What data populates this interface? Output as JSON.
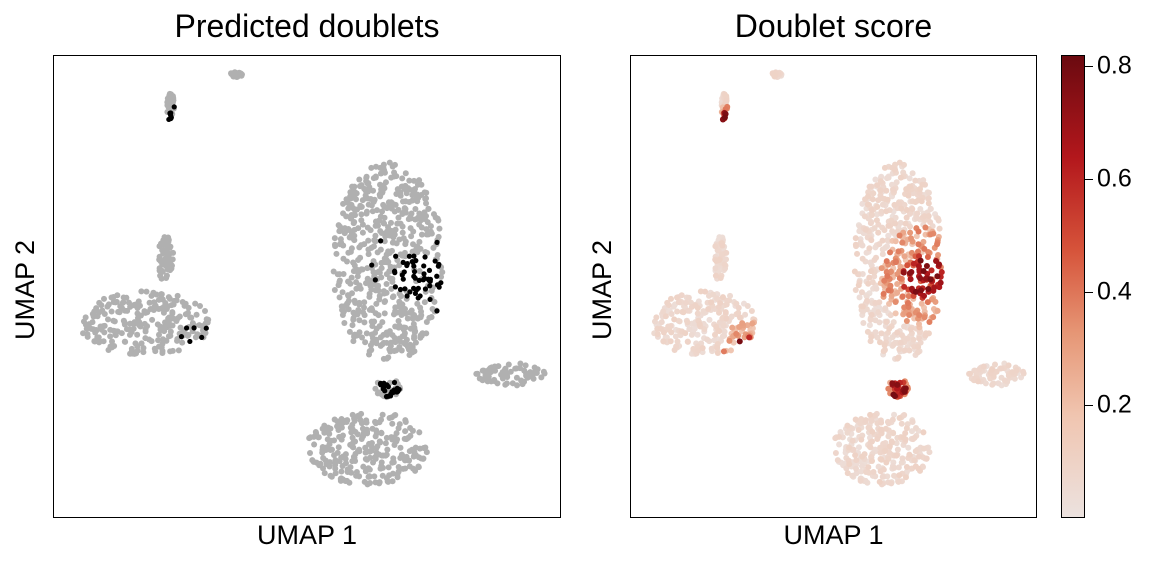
{
  "chart_data": [
    {
      "type": "scatter",
      "title": "Predicted doublets",
      "xlabel": "UMAP 1",
      "ylabel": "UMAP 2",
      "ticks": "none",
      "legend": "none",
      "point_colors": {
        "singlet": "#b0b0b0",
        "doublet": "#000000"
      },
      "clusters": [
        {
          "name": "tiny-top",
          "cx": 0.36,
          "cy": 0.04,
          "rx": 0.012,
          "ry": 0.006
        },
        {
          "name": "thin-top",
          "cx": 0.23,
          "cy": 0.11,
          "rx": 0.008,
          "ry": 0.03
        },
        {
          "name": "large-upper-right",
          "cx": 0.66,
          "cy": 0.45,
          "rx": 0.11,
          "ry": 0.22
        },
        {
          "name": "small-stem",
          "cx": 0.22,
          "cy": 0.44,
          "rx": 0.016,
          "ry": 0.05
        },
        {
          "name": "left-blob",
          "cx": 0.18,
          "cy": 0.58,
          "rx": 0.13,
          "ry": 0.07
        },
        {
          "name": "bottom-blob",
          "cx": 0.62,
          "cy": 0.85,
          "rx": 0.12,
          "ry": 0.08
        },
        {
          "name": "right-small",
          "cx": 0.9,
          "cy": 0.69,
          "rx": 0.07,
          "ry": 0.025
        },
        {
          "name": "center-small",
          "cx": 0.66,
          "cy": 0.72,
          "rx": 0.025,
          "ry": 0.02
        }
      ],
      "doublet_regions": [
        {
          "cx": 0.29,
          "cy": 0.64,
          "r": 0.03
        },
        {
          "cx": 0.66,
          "cy": 0.72,
          "r": 0.02
        },
        {
          "cx": 0.72,
          "cy": 0.48,
          "r": 0.05
        },
        {
          "cx": 0.23,
          "cy": 0.13,
          "r": 0.01
        }
      ]
    },
    {
      "type": "scatter",
      "title": "Doublet score",
      "xlabel": "UMAP 1",
      "ylabel": "UMAP 2",
      "ticks": "none",
      "colorbar": {
        "ticks": [
          0.2,
          0.4,
          0.6,
          0.8
        ],
        "tick_labels": [
          "0.2",
          "0.4",
          "0.6",
          "0.8"
        ],
        "range": [
          0.0,
          0.82
        ],
        "colormap": "light-beige-to-dark-red"
      }
    }
  ]
}
